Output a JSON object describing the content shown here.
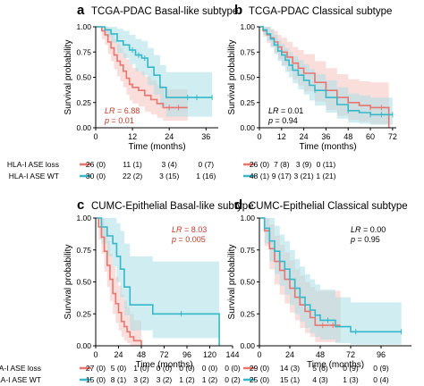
{
  "colors": {
    "loss": "#e8766f",
    "wt": "#35b8c9",
    "loss_fill": "#f6c3bf",
    "wt_fill": "#a9dfe6",
    "stat_red": "#c0392b",
    "censor": "#888888"
  },
  "legend": {
    "loss_label": "HLA-I ASE loss",
    "wt_label": "HLA-I ASE WT"
  },
  "chart_data": [
    {
      "type": "line",
      "panel_letter": "a",
      "title": "TCGA-PDAC Basal-like subtype",
      "xlabel": "Time (months)",
      "ylabel": "Survival probability",
      "xlim": [
        0,
        40
      ],
      "ylim": [
        0,
        1
      ],
      "xticks": [
        0,
        12,
        24,
        36
      ],
      "yticks": [
        "0.00",
        "0.25",
        "0.50",
        "0.75",
        "1.00"
      ],
      "stat_lines": [
        "LR = 6.88",
        "p = 0.01"
      ],
      "stat_color": "red",
      "stat_position": "bottom-left",
      "series": [
        {
          "name": "HLA-I ASE loss",
          "color_key": "loss",
          "x": [
            0,
            2,
            3,
            4,
            5,
            6,
            7,
            8,
            9,
            10,
            11,
            12,
            14,
            16,
            18,
            20,
            22,
            24,
            30
          ],
          "y": [
            1.0,
            0.96,
            0.92,
            0.85,
            0.79,
            0.72,
            0.66,
            0.62,
            0.56,
            0.49,
            0.43,
            0.4,
            0.37,
            0.32,
            0.28,
            0.24,
            0.2,
            0.2,
            0.2
          ],
          "ci_low": [
            1.0,
            0.88,
            0.82,
            0.73,
            0.66,
            0.58,
            0.51,
            0.46,
            0.4,
            0.33,
            0.27,
            0.24,
            0.21,
            0.16,
            0.13,
            0.1,
            0.07,
            0.07,
            0.07
          ],
          "ci_high": [
            1.0,
            1.0,
            1.0,
            0.98,
            0.94,
            0.88,
            0.83,
            0.79,
            0.74,
            0.68,
            0.63,
            0.59,
            0.56,
            0.51,
            0.47,
            0.42,
            0.38,
            0.38,
            0.38
          ],
          "censor_x": [
            24,
            27
          ]
        },
        {
          "name": "HLA-I ASE WT",
          "color_key": "wt",
          "x": [
            0,
            3,
            5,
            7,
            9,
            11,
            13,
            15,
            17,
            19,
            21,
            23,
            30,
            38
          ],
          "y": [
            1.0,
            0.97,
            0.93,
            0.86,
            0.82,
            0.77,
            0.72,
            0.69,
            0.6,
            0.52,
            0.4,
            0.3,
            0.3,
            0.3
          ],
          "ci_low": [
            1.0,
            0.9,
            0.84,
            0.74,
            0.69,
            0.63,
            0.56,
            0.52,
            0.42,
            0.33,
            0.21,
            0.11,
            0.11,
            0.11
          ],
          "ci_high": [
            1.0,
            1.0,
            1.0,
            0.98,
            0.96,
            0.92,
            0.88,
            0.86,
            0.79,
            0.72,
            0.62,
            0.55,
            0.55,
            0.55
          ],
          "censor_x": [
            12,
            14,
            16,
            30,
            33,
            38
          ]
        }
      ],
      "risk_table": {
        "loss": [
          "26 (0)",
          "11 (1)",
          "3 (4)",
          "0 (7)"
        ],
        "wt": [
          "30 (0)",
          "22 (2)",
          "3 (15)",
          "1 (16)"
        ]
      }
    },
    {
      "type": "line",
      "panel_letter": "b",
      "title": "TCGA-PDAC Classical subtype",
      "xlabel": "Time (months)",
      "ylabel": "Survival probability",
      "xlim": [
        0,
        74
      ],
      "ylim": [
        0,
        1
      ],
      "xticks": [
        0,
        12,
        24,
        36,
        48,
        60,
        72
      ],
      "yticks": [
        "0.00",
        "0.25",
        "0.50",
        "0.75",
        "1.00"
      ],
      "stat_lines": [
        "LR = 0.01",
        "p = 0.94"
      ],
      "stat_color": "black",
      "stat_position": "bottom-left",
      "series": [
        {
          "name": "HLA-I ASE loss",
          "color_key": "loss",
          "x": [
            0,
            2,
            4,
            6,
            8,
            10,
            12,
            15,
            18,
            21,
            24,
            30,
            36,
            42,
            48,
            54,
            60,
            66,
            70
          ],
          "y": [
            1.0,
            0.96,
            0.92,
            0.89,
            0.85,
            0.8,
            0.75,
            0.7,
            0.64,
            0.59,
            0.54,
            0.45,
            0.37,
            0.3,
            0.25,
            0.22,
            0.2,
            0.2,
            0.0
          ],
          "ci_low": [
            1.0,
            0.9,
            0.84,
            0.8,
            0.74,
            0.68,
            0.62,
            0.56,
            0.48,
            0.42,
            0.36,
            0.26,
            0.18,
            0.12,
            0.08,
            0.06,
            0.04,
            0.04,
            0.0
          ],
          "ci_high": [
            1.0,
            1.0,
            1.0,
            0.98,
            0.96,
            0.92,
            0.89,
            0.85,
            0.8,
            0.77,
            0.73,
            0.66,
            0.59,
            0.53,
            0.48,
            0.46,
            0.45,
            0.45,
            0.0
          ],
          "censor_x": [
            60,
            66
          ]
        },
        {
          "name": "HLA-I ASE WT",
          "color_key": "wt",
          "x": [
            0,
            2,
            4,
            6,
            8,
            10,
            12,
            14,
            16,
            18,
            21,
            24,
            27,
            30,
            36,
            42,
            48,
            54,
            60,
            66,
            72
          ],
          "y": [
            1.0,
            0.97,
            0.93,
            0.88,
            0.82,
            0.76,
            0.72,
            0.67,
            0.62,
            0.57,
            0.52,
            0.47,
            0.42,
            0.37,
            0.3,
            0.23,
            0.17,
            0.15,
            0.13,
            0.13,
            0.13
          ],
          "ci_low": [
            1.0,
            0.92,
            0.86,
            0.8,
            0.73,
            0.66,
            0.61,
            0.55,
            0.5,
            0.44,
            0.38,
            0.33,
            0.27,
            0.22,
            0.15,
            0.09,
            0.05,
            0.04,
            0.03,
            0.03,
            0.03
          ],
          "ci_high": [
            1.0,
            1.0,
            1.0,
            0.97,
            0.92,
            0.87,
            0.83,
            0.79,
            0.75,
            0.71,
            0.67,
            0.63,
            0.58,
            0.53,
            0.47,
            0.4,
            0.34,
            0.32,
            0.3,
            0.3,
            0.3
          ],
          "censor_x": [
            30,
            48,
            60,
            66,
            72
          ]
        }
      ],
      "risk_table": {
        "loss": [
          "26 (0)",
          "7 (8)",
          "3 (9)",
          "0 (11)"
        ],
        "wt": [
          "48 (1)",
          "9 (17)",
          "3 (21)",
          "1 (21)"
        ]
      }
    },
    {
      "type": "line",
      "panel_letter": "c",
      "title": "CUMC-Epithelial Basal-like subtype",
      "xlabel": "Time (months)",
      "ylabel": "Survival probability",
      "xlim": [
        0,
        144
      ],
      "ylim": [
        0,
        1
      ],
      "xticks": [
        0,
        24,
        48,
        72,
        96,
        120,
        144
      ],
      "yticks": [
        "0.00",
        "0.25",
        "0.50",
        "0.75",
        "1.00"
      ],
      "stat_lines": [
        "LR = 8.03",
        "p = 0.005"
      ],
      "stat_color": "red",
      "stat_position": "top-right",
      "series": [
        {
          "name": "HLA-I ASE loss",
          "color_key": "loss",
          "x": [
            0,
            3,
            6,
            9,
            12,
            15,
            18,
            21,
            24,
            27,
            30,
            33,
            36,
            40,
            44,
            48
          ],
          "y": [
            1.0,
            0.93,
            0.85,
            0.74,
            0.63,
            0.52,
            0.41,
            0.33,
            0.26,
            0.19,
            0.15,
            0.11,
            0.07,
            0.04,
            0.04,
            0.0
          ],
          "ci_low": [
            1.0,
            0.83,
            0.72,
            0.58,
            0.46,
            0.35,
            0.25,
            0.18,
            0.12,
            0.07,
            0.04,
            0.02,
            0.0,
            0.0,
            0.0,
            0.0
          ],
          "ci_high": [
            1.0,
            1.0,
            1.0,
            0.92,
            0.82,
            0.72,
            0.62,
            0.54,
            0.47,
            0.4,
            0.35,
            0.3,
            0.25,
            0.2,
            0.2,
            0.0
          ],
          "censor_x": []
        },
        {
          "name": "HLA-I ASE WT",
          "color_key": "wt",
          "x": [
            0,
            6,
            12,
            18,
            22,
            26,
            30,
            36,
            48,
            60,
            72,
            84,
            96,
            108,
            120,
            130
          ],
          "y": [
            1.0,
            0.93,
            0.86,
            0.8,
            0.7,
            0.6,
            0.46,
            0.32,
            0.32,
            0.25,
            0.25,
            0.25,
            0.25,
            0.25,
            0.25,
            0.0
          ],
          "ci_low": [
            1.0,
            0.8,
            0.7,
            0.62,
            0.5,
            0.38,
            0.24,
            0.12,
            0.12,
            0.06,
            0.06,
            0.06,
            0.06,
            0.06,
            0.06,
            0.0
          ],
          "ci_high": [
            1.0,
            1.0,
            1.0,
            1.0,
            0.96,
            0.9,
            0.8,
            0.7,
            0.7,
            0.66,
            0.66,
            0.66,
            0.66,
            0.66,
            0.66,
            0.0
          ],
          "censor_x": [
            90
          ]
        }
      ],
      "risk_table": {
        "loss": [
          "27 (0)",
          "5 (0)",
          "1 (0)",
          "0 (0)",
          "0 (0)",
          "0 (0)",
          "0 (0)"
        ],
        "wt": [
          "15 (0)",
          "8 (1)",
          "3 (2)",
          "3 (2)",
          "1 (2)",
          "1 (2)",
          "0 (2)"
        ]
      }
    },
    {
      "type": "line",
      "panel_letter": "d",
      "title": "CUMC-Epithelial Classical subtype",
      "xlabel": "Time (months)",
      "ylabel": "Survival probability",
      "xlim": [
        0,
        120
      ],
      "ylim": [
        0,
        1
      ],
      "xticks": [
        0,
        24,
        48,
        72,
        96
      ],
      "yticks": [
        "0.00",
        "0.25",
        "0.50",
        "0.75",
        "1.00"
      ],
      "stat_lines": [
        "LR = 0.00",
        "p = 0.95"
      ],
      "stat_color": "black",
      "stat_position": "top-right",
      "series": [
        {
          "name": "HLA-I ASE loss",
          "color_key": "loss",
          "x": [
            0,
            4,
            8,
            12,
            16,
            20,
            24,
            28,
            32,
            36,
            40,
            44,
            48,
            56,
            64
          ],
          "y": [
            1.0,
            0.9,
            0.76,
            0.66,
            0.59,
            0.52,
            0.45,
            0.38,
            0.32,
            0.27,
            0.22,
            0.16,
            0.16,
            0.16,
            0.16
          ],
          "ci_low": [
            1.0,
            0.78,
            0.6,
            0.48,
            0.4,
            0.33,
            0.26,
            0.2,
            0.14,
            0.1,
            0.07,
            0.03,
            0.03,
            0.03,
            0.03
          ],
          "ci_high": [
            1.0,
            1.0,
            0.95,
            0.86,
            0.79,
            0.73,
            0.67,
            0.6,
            0.55,
            0.5,
            0.46,
            0.43,
            0.43,
            0.43,
            0.43
          ],
          "censor_x": [
            50,
            58
          ]
        },
        {
          "name": "HLA-I ASE WT",
          "color_key": "wt",
          "x": [
            0,
            4,
            8,
            12,
            16,
            20,
            24,
            28,
            32,
            36,
            40,
            44,
            48,
            60,
            72,
            84,
            96,
            112
          ],
          "y": [
            1.0,
            0.92,
            0.82,
            0.74,
            0.66,
            0.6,
            0.52,
            0.45,
            0.38,
            0.32,
            0.28,
            0.24,
            0.2,
            0.15,
            0.11,
            0.11,
            0.11,
            0.11
          ],
          "ci_low": [
            1.0,
            0.8,
            0.66,
            0.56,
            0.47,
            0.4,
            0.32,
            0.25,
            0.19,
            0.14,
            0.1,
            0.07,
            0.05,
            0.02,
            0.01,
            0.01,
            0.01,
            0.01
          ],
          "ci_high": [
            1.0,
            1.0,
            1.0,
            0.94,
            0.87,
            0.82,
            0.75,
            0.68,
            0.62,
            0.56,
            0.52,
            0.48,
            0.44,
            0.38,
            0.34,
            0.34,
            0.34,
            0.34
          ],
          "censor_x": [
            36,
            44,
            54,
            76,
            112
          ]
        }
      ],
      "risk_table": {
        "loss": [
          "29 (0)",
          "14 (3)",
          "5 (6)",
          "0 (9)",
          "0 (9)"
        ],
        "wt": [
          "25 (0)",
          "15 (1)",
          "4 (3)",
          "1 (3)",
          "0 (4)"
        ]
      }
    }
  ]
}
